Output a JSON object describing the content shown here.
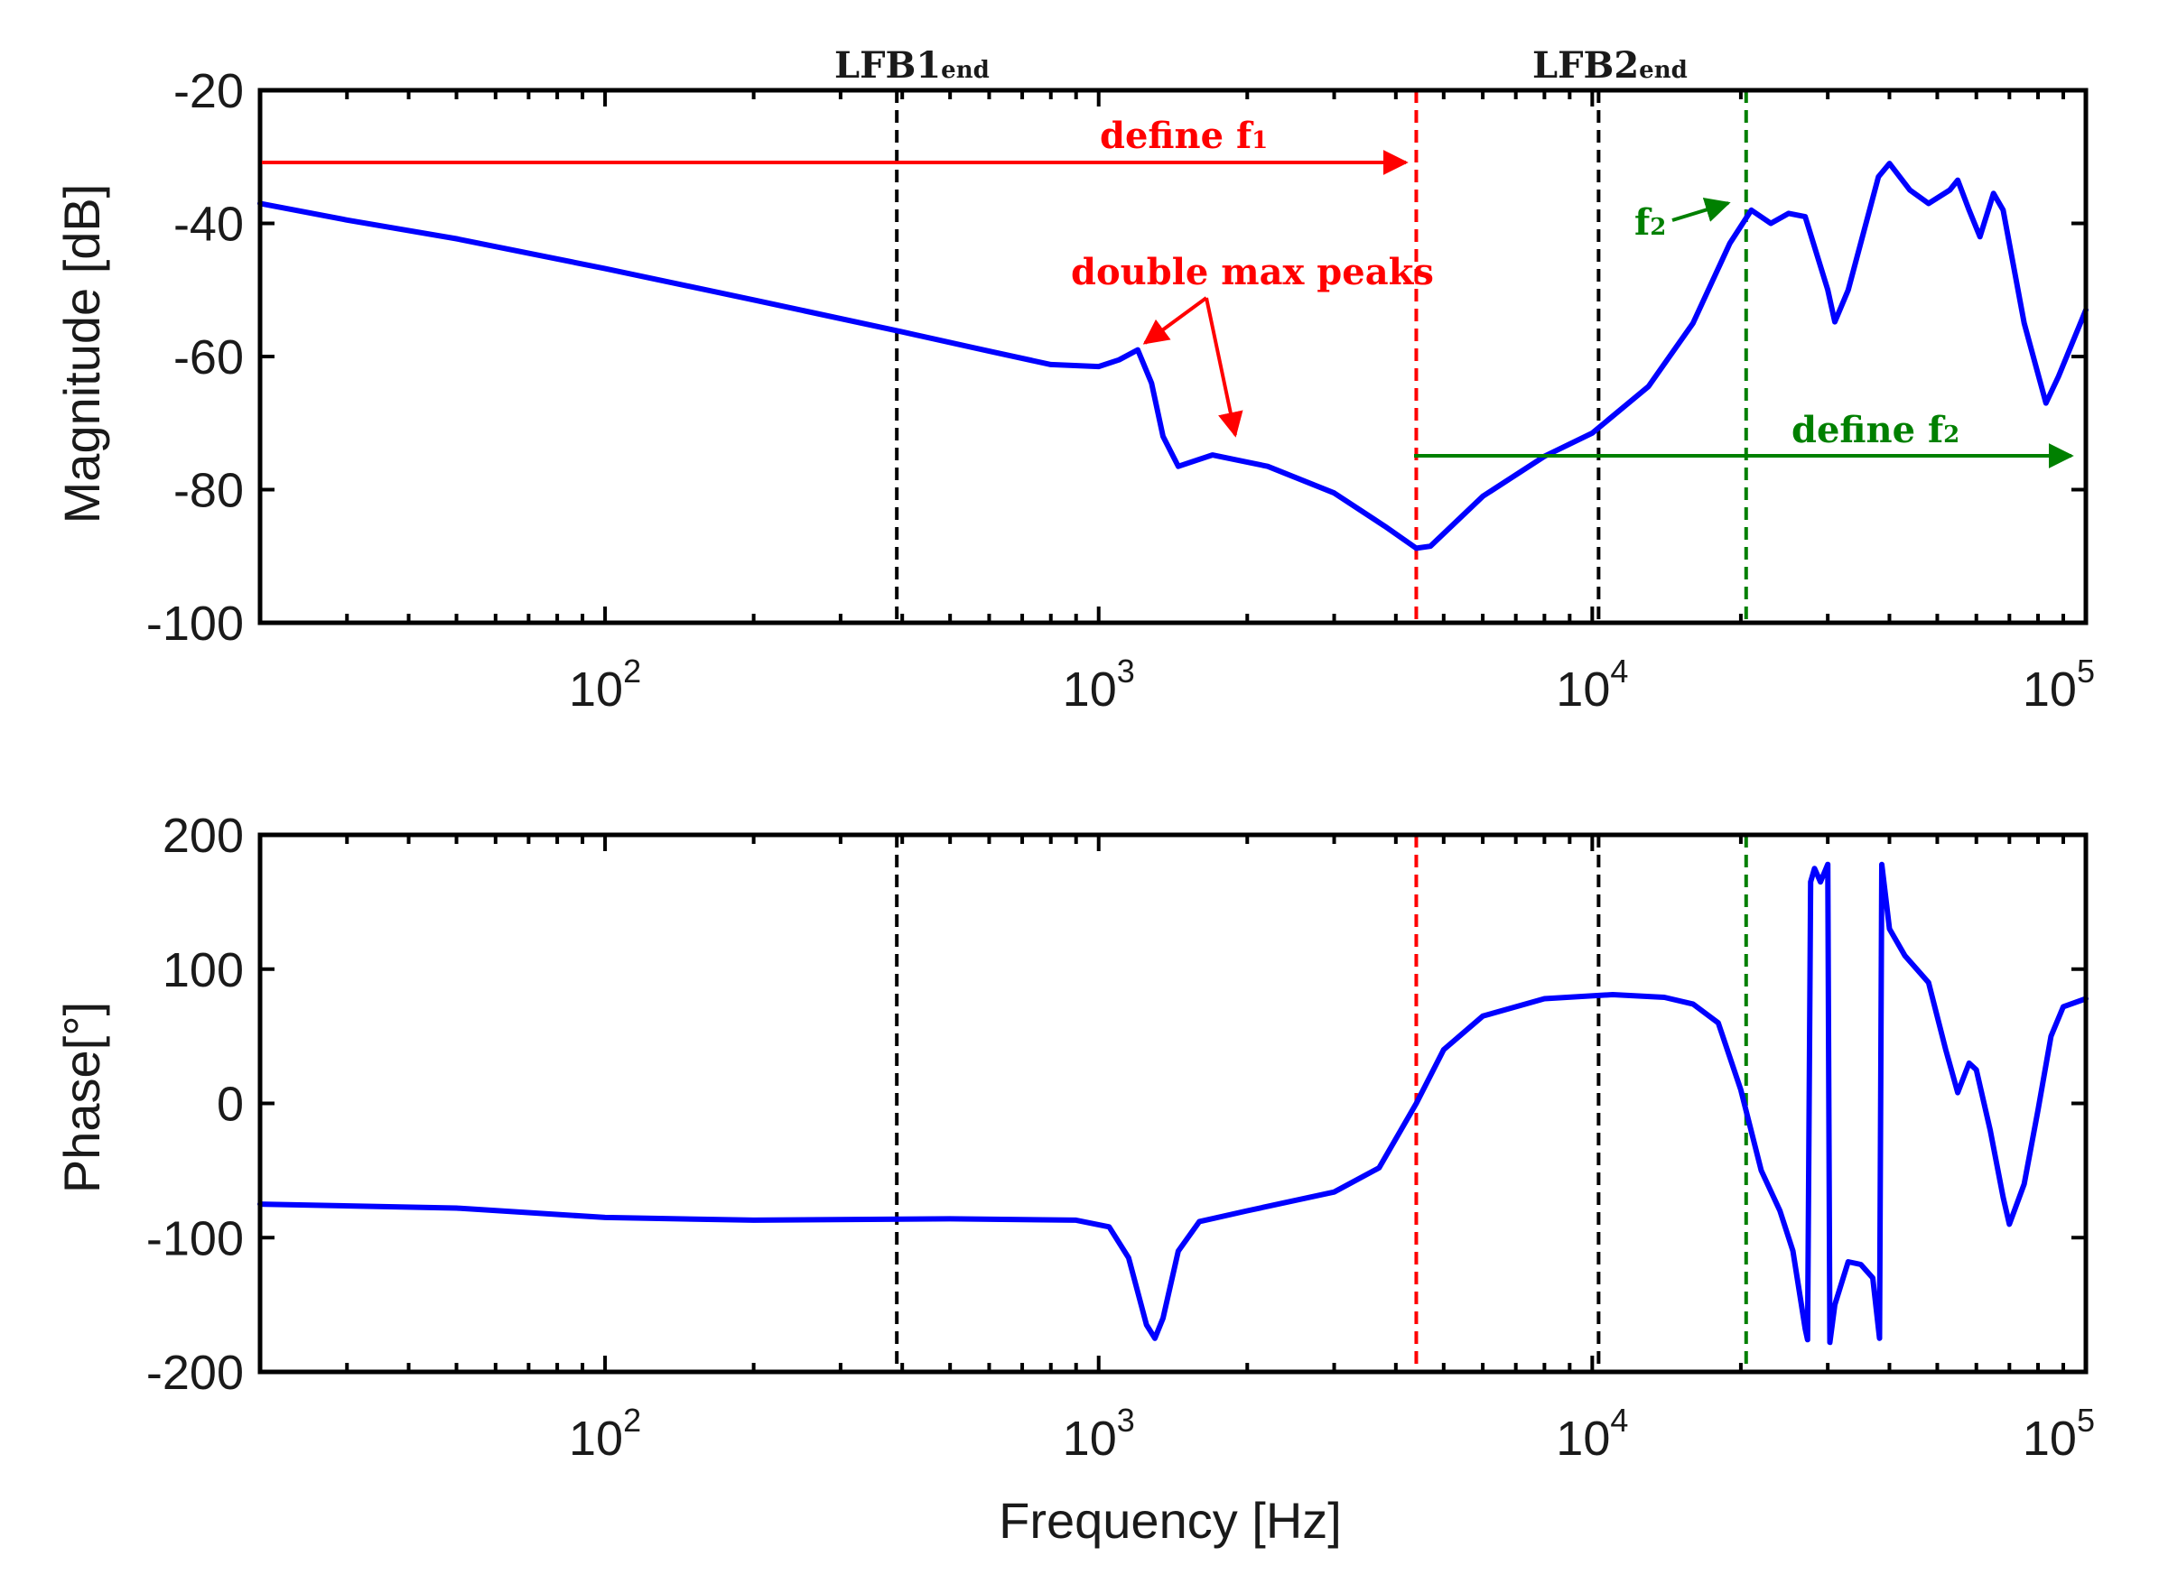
{
  "chart_data": [
    {
      "type": "line",
      "panel": "magnitude",
      "ylabel": "Magnitude [dB]",
      "xlabel": "",
      "xscale": "log",
      "xlim": [
        20,
        100000
      ],
      "ylim": [
        -100,
        -20
      ],
      "yticks": [
        -20,
        -40,
        -60,
        -80,
        -100
      ],
      "xticks": [
        {
          "base": "10",
          "exp": "2",
          "value": 100
        },
        {
          "base": "10",
          "exp": "3",
          "value": 1000
        },
        {
          "base": "10",
          "exp": "4",
          "value": 10000
        },
        {
          "base": "10",
          "exp": "5",
          "value": 100000
        }
      ],
      "series": [
        {
          "name": "magnitude",
          "color": "#0000ff",
          "points": [
            [
              20,
              -37
            ],
            [
              30,
              -39.5
            ],
            [
              50,
              -42.3
            ],
            [
              100,
              -46.8
            ],
            [
              200,
              -51.5
            ],
            [
              400,
              -56.3
            ],
            [
              600,
              -59.2
            ],
            [
              800,
              -61.2
            ],
            [
              1000,
              -61.5
            ],
            [
              1100,
              -60.5
            ],
            [
              1200,
              -59
            ],
            [
              1280,
              -64
            ],
            [
              1350,
              -72
            ],
            [
              1450,
              -76.5
            ],
            [
              1700,
              -74.8
            ],
            [
              2200,
              -76.5
            ],
            [
              3000,
              -80.5
            ],
            [
              3800,
              -85.5
            ],
            [
              4400,
              -88.8
            ],
            [
              4700,
              -88.5
            ],
            [
              6000,
              -81
            ],
            [
              8000,
              -75
            ],
            [
              10000,
              -71.5
            ],
            [
              13000,
              -64.5
            ],
            [
              16000,
              -55
            ],
            [
              19000,
              -43
            ],
            [
              21000,
              -38
            ],
            [
              23000,
              -40
            ],
            [
              25000,
              -38.5
            ],
            [
              27000,
              -39
            ],
            [
              30000,
              -50
            ],
            [
              31000,
              -54.8
            ],
            [
              33000,
              -50
            ],
            [
              38000,
              -33
            ],
            [
              40000,
              -31
            ],
            [
              44000,
              -35
            ],
            [
              48000,
              -37
            ],
            [
              53000,
              -35
            ],
            [
              55000,
              -33.5
            ],
            [
              58000,
              -38
            ],
            [
              61000,
              -42
            ],
            [
              65000,
              -35.5
            ],
            [
              68000,
              -38
            ],
            [
              75000,
              -55
            ],
            [
              83000,
              -67
            ],
            [
              88000,
              -63
            ],
            [
              100000,
              -53
            ]
          ]
        }
      ],
      "vlines": [
        {
          "x": 390,
          "color": "#000000",
          "label": "LFB1",
          "label_sub": "end"
        },
        {
          "x": 4400,
          "color": "#ff0000"
        },
        {
          "x": 10300,
          "color": "#000000",
          "label": "LFB2",
          "label_sub": "end"
        },
        {
          "x": 20500,
          "color": "#008000"
        }
      ],
      "annotations": [
        {
          "text": "define f",
          "sub": "1",
          "color": "#ff0000"
        },
        {
          "text": "double max peaks",
          "color": "#ff0000"
        },
        {
          "text": "f",
          "sub": "2",
          "color": "#008000"
        },
        {
          "text": "define f",
          "sub": "2",
          "color": "#008000"
        }
      ]
    },
    {
      "type": "line",
      "panel": "phase",
      "ylabel": "Phase[°]",
      "xlabel": "Frequency [Hz]",
      "xscale": "log",
      "xlim": [
        20,
        100000
      ],
      "ylim": [
        -200,
        200
      ],
      "yticks": [
        200,
        100,
        0,
        -100,
        -200
      ],
      "xticks": [
        {
          "base": "10",
          "exp": "2",
          "value": 100
        },
        {
          "base": "10",
          "exp": "3",
          "value": 1000
        },
        {
          "base": "10",
          "exp": "4",
          "value": 10000
        },
        {
          "base": "10",
          "exp": "5",
          "value": 100000
        }
      ],
      "series": [
        {
          "name": "phase",
          "color": "#0000ff",
          "points": [
            [
              20,
              -75
            ],
            [
              50,
              -78
            ],
            [
              100,
              -85
            ],
            [
              200,
              -87
            ],
            [
              500,
              -86
            ],
            [
              900,
              -87
            ],
            [
              1050,
              -92
            ],
            [
              1150,
              -115
            ],
            [
              1250,
              -165
            ],
            [
              1300,
              -175
            ],
            [
              1350,
              -160
            ],
            [
              1450,
              -110
            ],
            [
              1600,
              -88
            ],
            [
              2000,
              -80
            ],
            [
              3000,
              -66
            ],
            [
              3700,
              -48
            ],
            [
              4400,
              0
            ],
            [
              5000,
              40
            ],
            [
              6000,
              65
            ],
            [
              8000,
              78
            ],
            [
              11000,
              81
            ],
            [
              14000,
              79
            ],
            [
              16000,
              74
            ],
            [
              18000,
              60
            ],
            [
              20000,
              10
            ],
            [
              22000,
              -50
            ],
            [
              24000,
              -80
            ],
            [
              25500,
              -110
            ],
            [
              27000,
              -168
            ],
            [
              27300,
              -176
            ],
            [
              27700,
              165
            ],
            [
              28200,
              175
            ],
            [
              29000,
              165
            ],
            [
              30000,
              178
            ],
            [
              30300,
              -178
            ],
            [
              31000,
              -150
            ],
            [
              33000,
              -118
            ],
            [
              35000,
              -120
            ],
            [
              37000,
              -130
            ],
            [
              38200,
              -175
            ],
            [
              38600,
              178
            ],
            [
              40000,
              130
            ],
            [
              43000,
              110
            ],
            [
              48000,
              90
            ],
            [
              52000,
              40
            ],
            [
              55000,
              8
            ],
            [
              58000,
              30
            ],
            [
              60000,
              25
            ],
            [
              64000,
              -20
            ],
            [
              68000,
              -70
            ],
            [
              70000,
              -90
            ],
            [
              75000,
              -60
            ],
            [
              80000,
              -5
            ],
            [
              85000,
              50
            ],
            [
              90000,
              72
            ],
            [
              100000,
              78
            ]
          ]
        }
      ],
      "vlines": [
        {
          "x": 390,
          "color": "#000000"
        },
        {
          "x": 4400,
          "color": "#ff0000"
        },
        {
          "x": 10300,
          "color": "#000000"
        },
        {
          "x": 20500,
          "color": "#008000"
        }
      ]
    }
  ]
}
